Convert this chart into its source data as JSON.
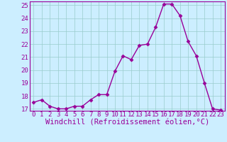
{
  "x": [
    0,
    1,
    2,
    3,
    4,
    5,
    6,
    7,
    8,
    9,
    10,
    11,
    12,
    13,
    14,
    15,
    16,
    17,
    18,
    19,
    20,
    21,
    22,
    23
  ],
  "y": [
    17.5,
    17.7,
    17.2,
    17.0,
    17.0,
    17.2,
    17.2,
    17.7,
    18.1,
    18.1,
    19.9,
    21.1,
    20.8,
    21.9,
    22.0,
    23.3,
    25.1,
    25.1,
    24.2,
    22.2,
    21.1,
    19.0,
    17.0,
    16.9
  ],
  "ylim": [
    17,
    25
  ],
  "xlim": [
    -0.5,
    23.5
  ],
  "yticks": [
    17,
    18,
    19,
    20,
    21,
    22,
    23,
    24,
    25
  ],
  "xticks": [
    0,
    1,
    2,
    3,
    4,
    5,
    6,
    7,
    8,
    9,
    10,
    11,
    12,
    13,
    14,
    15,
    16,
    17,
    18,
    19,
    20,
    21,
    22,
    23
  ],
  "line_color": "#990099",
  "marker": "D",
  "marker_size": 2.5,
  "line_width": 1.0,
  "bg_color": "#cceeff",
  "grid_color": "#99cccc",
  "xlabel": "Windchill (Refroidissement éolien,°C)",
  "xlabel_color": "#990099",
  "xlabel_fontsize": 7.5,
  "tick_color": "#990099",
  "tick_fontsize": 6.5,
  "axes_color": "#990099",
  "spine_linewidth": 0.8
}
